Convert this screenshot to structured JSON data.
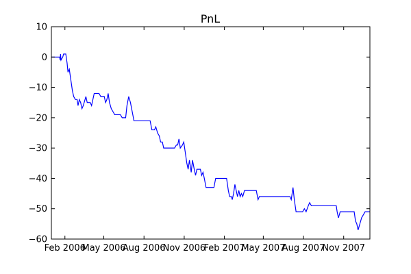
{
  "chart_data": {
    "type": "line",
    "title": "PnL",
    "xlabel": "",
    "ylabel": "",
    "xlim": [
      "2006-01-01",
      "2007-12-31"
    ],
    "ylim": [
      -60,
      10
    ],
    "grid": false,
    "line_color": "#0000ff",
    "x_ticks": [
      {
        "label": "Feb 2006",
        "date": "2006-02-01"
      },
      {
        "label": "May 2006",
        "date": "2006-05-01"
      },
      {
        "label": "Aug 2006",
        "date": "2006-08-01"
      },
      {
        "label": "Nov 2006",
        "date": "2006-11-01"
      },
      {
        "label": "Feb 2007",
        "date": "2007-02-01"
      },
      {
        "label": "May 2007",
        "date": "2007-05-01"
      },
      {
        "label": "Aug 2007",
        "date": "2007-08-01"
      },
      {
        "label": "Nov 2007",
        "date": "2007-11-01"
      }
    ],
    "y_ticks": [
      10,
      0,
      -10,
      -20,
      -30,
      -40,
      -50,
      -60
    ],
    "series": [
      {
        "points": [
          [
            "2006-01-01",
            0
          ],
          [
            "2006-01-20",
            0
          ],
          [
            "2006-01-21",
            -1
          ],
          [
            "2006-01-22",
            1
          ],
          [
            "2006-01-23",
            -1
          ],
          [
            "2006-01-27",
            0
          ],
          [
            "2006-01-29",
            1
          ],
          [
            "2006-02-03",
            1
          ],
          [
            "2006-02-06",
            -2
          ],
          [
            "2006-02-08",
            -5
          ],
          [
            "2006-02-11",
            -4
          ],
          [
            "2006-02-13",
            -6
          ],
          [
            "2006-02-15",
            -8
          ],
          [
            "2006-02-18",
            -11
          ],
          [
            "2006-02-21",
            -13
          ],
          [
            "2006-02-25",
            -14
          ],
          [
            "2006-03-01",
            -14
          ],
          [
            "2006-03-03",
            -16
          ],
          [
            "2006-03-06",
            -14
          ],
          [
            "2006-03-09",
            -15
          ],
          [
            "2006-03-12",
            -17
          ],
          [
            "2006-03-15",
            -16
          ],
          [
            "2006-03-19",
            -14
          ],
          [
            "2006-03-21",
            -13
          ],
          [
            "2006-03-24",
            -15
          ],
          [
            "2006-03-28",
            -15
          ],
          [
            "2006-03-31",
            -15
          ],
          [
            "2006-04-03",
            -16
          ],
          [
            "2006-04-06",
            -14
          ],
          [
            "2006-04-09",
            -12
          ],
          [
            "2006-04-20",
            -12
          ],
          [
            "2006-04-24",
            -13
          ],
          [
            "2006-05-02",
            -13
          ],
          [
            "2006-05-05",
            -15
          ],
          [
            "2006-05-08",
            -14
          ],
          [
            "2006-05-11",
            -12
          ],
          [
            "2006-05-14",
            -15
          ],
          [
            "2006-05-18",
            -17
          ],
          [
            "2006-05-22",
            -18
          ],
          [
            "2006-05-26",
            -19
          ],
          [
            "2006-06-08",
            -19
          ],
          [
            "2006-06-12",
            -20
          ],
          [
            "2006-06-20",
            -20
          ],
          [
            "2006-06-23",
            -16
          ],
          [
            "2006-06-27",
            -13
          ],
          [
            "2006-07-01",
            -15
          ],
          [
            "2006-07-05",
            -18
          ],
          [
            "2006-07-09",
            -21
          ],
          [
            "2006-08-15",
            -21
          ],
          [
            "2006-08-19",
            -24
          ],
          [
            "2006-08-25",
            -24
          ],
          [
            "2006-08-28",
            -23
          ],
          [
            "2006-09-01",
            -25
          ],
          [
            "2006-09-05",
            -26
          ],
          [
            "2006-09-08",
            -28
          ],
          [
            "2006-09-12",
            -28
          ],
          [
            "2006-09-15",
            -30
          ],
          [
            "2006-10-10",
            -30
          ],
          [
            "2006-10-14",
            -29
          ],
          [
            "2006-10-17",
            -29
          ],
          [
            "2006-10-20",
            -27
          ],
          [
            "2006-10-23",
            -30
          ],
          [
            "2006-10-28",
            -29
          ],
          [
            "2006-10-31",
            -28
          ],
          [
            "2006-11-03",
            -31
          ],
          [
            "2006-11-07",
            -35
          ],
          [
            "2006-11-10",
            -37
          ],
          [
            "2006-11-13",
            -34
          ],
          [
            "2006-11-17",
            -38
          ],
          [
            "2006-11-20",
            -34
          ],
          [
            "2006-11-24",
            -37
          ],
          [
            "2006-11-27",
            -39
          ],
          [
            "2006-11-30",
            -37
          ],
          [
            "2006-12-08",
            -37
          ],
          [
            "2006-12-11",
            -39
          ],
          [
            "2006-12-14",
            -38
          ],
          [
            "2006-12-17",
            -40
          ],
          [
            "2006-12-21",
            -43
          ],
          [
            "2007-01-08",
            -43
          ],
          [
            "2007-01-12",
            -40
          ],
          [
            "2007-02-06",
            -40
          ],
          [
            "2007-02-10",
            -44
          ],
          [
            "2007-02-13",
            -46
          ],
          [
            "2007-02-17",
            -46
          ],
          [
            "2007-02-19",
            -47
          ],
          [
            "2007-02-22",
            -45
          ],
          [
            "2007-02-25",
            -42
          ],
          [
            "2007-02-28",
            -44
          ],
          [
            "2007-03-03",
            -46
          ],
          [
            "2007-03-06",
            -44
          ],
          [
            "2007-03-09",
            -46
          ],
          [
            "2007-03-12",
            -45
          ],
          [
            "2007-03-15",
            -46
          ],
          [
            "2007-03-19",
            -44
          ],
          [
            "2007-04-15",
            -44
          ],
          [
            "2007-04-19",
            -47
          ],
          [
            "2007-04-22",
            -46
          ],
          [
            "2007-07-01",
            -46
          ],
          [
            "2007-07-04",
            -47
          ],
          [
            "2007-07-08",
            -43
          ],
          [
            "2007-07-11",
            -47
          ],
          [
            "2007-07-15",
            -51
          ],
          [
            "2007-07-30",
            -51
          ],
          [
            "2007-08-03",
            -50
          ],
          [
            "2007-08-07",
            -51
          ],
          [
            "2007-08-12",
            -49
          ],
          [
            "2007-08-15",
            -48
          ],
          [
            "2007-08-19",
            -49
          ],
          [
            "2007-10-15",
            -49
          ],
          [
            "2007-10-17",
            -51
          ],
          [
            "2007-10-20",
            -53
          ],
          [
            "2007-10-24",
            -51
          ],
          [
            "2007-10-28",
            -51
          ],
          [
            "2007-11-25",
            -51
          ],
          [
            "2007-11-28",
            -54
          ],
          [
            "2007-12-01",
            -55
          ],
          [
            "2007-12-04",
            -57
          ],
          [
            "2007-12-08",
            -55
          ],
          [
            "2007-12-12",
            -53
          ],
          [
            "2007-12-16",
            -52
          ],
          [
            "2007-12-20",
            -51
          ],
          [
            "2007-12-31",
            -51
          ]
        ]
      }
    ]
  }
}
